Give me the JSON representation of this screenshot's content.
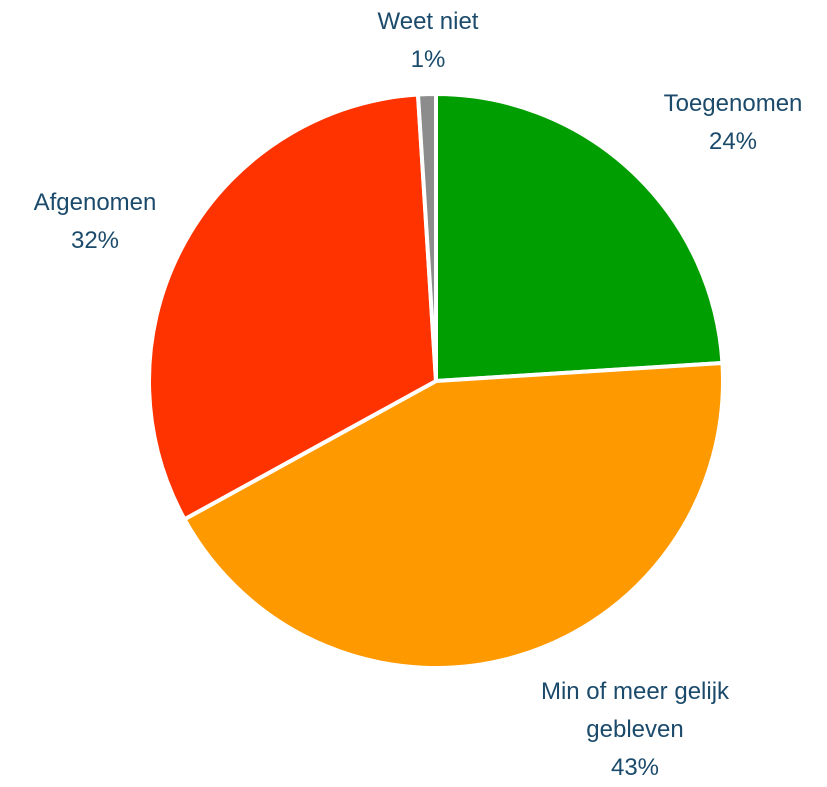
{
  "chart_data": {
    "type": "pie",
    "categories": [
      "Toegenomen",
      "Min of meer gelijk gebleven",
      "Afgenomen",
      "Weet niet"
    ],
    "values": [
      24,
      43,
      32,
      1
    ],
    "value_labels": [
      "24%",
      "43%",
      "32%",
      "1%"
    ],
    "colors": [
      "#009e00",
      "#ff9900",
      "#ff3300",
      "#8c8c8c"
    ]
  }
}
